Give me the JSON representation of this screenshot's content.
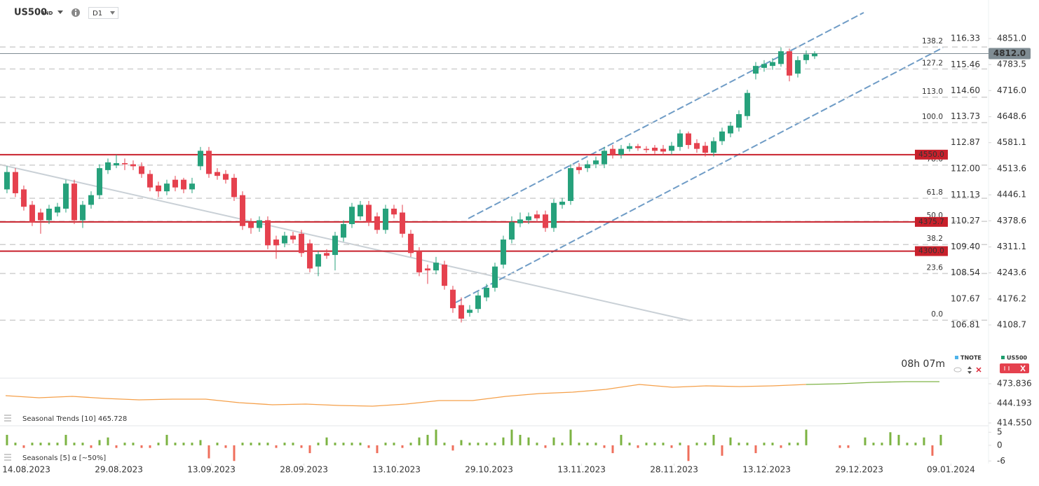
{
  "header": {
    "symbol": "US500",
    "market": "IND",
    "timeframe": "D1"
  },
  "chart_data": [
    {
      "type": "candlestick",
      "open": [
        4460,
        4505,
        4460,
        4420,
        4400,
        4380,
        4400,
        4410,
        4475,
        4380,
        4420,
        4445,
        4510,
        4522,
        4528,
        4525,
        4520,
        4500,
        4470,
        4455,
        4485,
        4485,
        4460,
        4520,
        4560,
        4505,
        4500,
        4490,
        4445,
        4375,
        4360,
        4380,
        4330,
        4320,
        4340,
        4345,
        4320,
        4260,
        4295,
        4290,
        4335,
        4370,
        4390,
        4420,
        4390,
        4355,
        4410,
        4400,
        4345,
        4300,
        4255,
        4250,
        4265,
        4200,
        4160,
        4140,
        4150,
        4180,
        4205,
        4265,
        4330,
        4372,
        4380,
        4395,
        4395,
        4360,
        4420,
        4430,
        4518,
        4515,
        4525,
        4525,
        4565,
        4550,
        4565,
        4572,
        4565,
        4568,
        4565,
        4560,
        4570,
        4605,
        4580,
        4573,
        4555,
        4585,
        4605,
        4620,
        4650,
        4760,
        4775,
        4780,
        4785,
        4818,
        4760,
        4795,
        4805
      ],
      "high": [
        4520,
        4515,
        4470,
        4430,
        4410,
        4420,
        4425,
        4485,
        4485,
        4430,
        4455,
        4525,
        4540,
        4550,
        4540,
        4535,
        4530,
        4510,
        4480,
        4485,
        4495,
        4490,
        4490,
        4570,
        4570,
        4515,
        4510,
        4500,
        4455,
        4385,
        4390,
        4390,
        4340,
        4350,
        4350,
        4355,
        4330,
        4300,
        4305,
        4350,
        4380,
        4425,
        4430,
        4430,
        4400,
        4420,
        4420,
        4420,
        4355,
        4310,
        4265,
        4285,
        4275,
        4210,
        4180,
        4160,
        4195,
        4215,
        4270,
        4340,
        4390,
        4400,
        4400,
        4405,
        4405,
        4435,
        4438,
        4525,
        4528,
        4535,
        4545,
        4570,
        4575,
        4575,
        4580,
        4578,
        4572,
        4575,
        4575,
        4583,
        4615,
        4610,
        4590,
        4583,
        4595,
        4620,
        4635,
        4665,
        4718,
        4790,
        4795,
        4800,
        4828,
        4825,
        4805,
        4820,
        4818
      ],
      "low": [
        4450,
        4440,
        4405,
        4365,
        4345,
        4370,
        4390,
        4400,
        4370,
        4360,
        4410,
        4435,
        4500,
        4515,
        4510,
        4510,
        4490,
        4455,
        4440,
        4445,
        4455,
        4450,
        4450,
        4510,
        4490,
        4485,
        4475,
        4430,
        4355,
        4345,
        4350,
        4305,
        4280,
        4310,
        4320,
        4285,
        4245,
        4235,
        4280,
        4250,
        4325,
        4360,
        4380,
        4365,
        4345,
        4345,
        4385,
        4335,
        4285,
        4235,
        4215,
        4240,
        4200,
        4140,
        4115,
        4130,
        4140,
        4170,
        4195,
        4255,
        4320,
        4362,
        4370,
        4375,
        4350,
        4350,
        4410,
        4420,
        4500,
        4505,
        4515,
        4515,
        4540,
        4540,
        4558,
        4560,
        4555,
        4552,
        4548,
        4550,
        4560,
        4565,
        4555,
        4545,
        4545,
        4575,
        4595,
        4610,
        4640,
        4745,
        4765,
        4770,
        4778,
        4740,
        4750,
        4785,
        4798
      ],
      "close": [
        4505,
        4450,
        4415,
        4375,
        4380,
        4410,
        4415,
        4475,
        4380,
        4420,
        4445,
        4515,
        4530,
        4528,
        4525,
        4520,
        4500,
        4465,
        4455,
        4475,
        4465,
        4460,
        4475,
        4560,
        4500,
        4495,
        4485,
        4440,
        4365,
        4360,
        4380,
        4315,
        4315,
        4340,
        4330,
        4295,
        4255,
        4292,
        4288,
        4340,
        4370,
        4415,
        4420,
        4375,
        4355,
        4410,
        4395,
        4345,
        4295,
        4245,
        4250,
        4270,
        4210,
        4152,
        4125,
        4148,
        4185,
        4205,
        4260,
        4330,
        4375,
        4382,
        4390,
        4385,
        4360,
        4425,
        4428,
        4515,
        4510,
        4525,
        4535,
        4560,
        4550,
        4565,
        4572,
        4567,
        4562,
        4560,
        4558,
        4573,
        4605,
        4575,
        4565,
        4555,
        4585,
        4610,
        4625,
        4655,
        4710,
        4780,
        4785,
        4790,
        4818,
        4755,
        4795,
        4810,
        4812
      ],
      "up_color": "#26a17b",
      "down_color": "#e5414e",
      "xlim": [
        -0.83,
        116.67
      ],
      "xticks": [
        {
          "value": 2.3,
          "label": "14.08.2023"
        },
        {
          "value": 13.3,
          "label": "29.08.2023"
        },
        {
          "value": 24.3,
          "label": "13.09.2023"
        },
        {
          "value": 35.3,
          "label": "28.09.2023"
        },
        {
          "value": 46.3,
          "label": "13.10.2023"
        },
        {
          "value": 57.3,
          "label": "29.10.2023"
        },
        {
          "value": 68.3,
          "label": "13.11.2023"
        },
        {
          "value": 79.3,
          "label": "28.11.2023"
        },
        {
          "value": 90.3,
          "label": "13.12.2023"
        },
        {
          "value": 101.3,
          "label": "29.12.2023"
        },
        {
          "value": 112.2,
          "label": "09.01.2024"
        }
      ],
      "ylim": [
        4043.3,
        4932.7
      ],
      "yticks": [
        {
          "value": 4851,
          "label": "4851.0"
        },
        {
          "value": 4783.5,
          "label": "4783.5"
        },
        {
          "value": 4716,
          "label": "4716.0"
        },
        {
          "value": 4648.6,
          "label": "4648.6"
        },
        {
          "value": 4581.1,
          "label": "4581.1"
        },
        {
          "value": 4513.6,
          "label": "4513.6"
        },
        {
          "value": 4446.1,
          "label": "4446.1"
        },
        {
          "value": 4378.6,
          "label": "4378.6"
        },
        {
          "value": 4311.1,
          "label": "4311.1"
        },
        {
          "value": 4243.6,
          "label": "4243.6"
        },
        {
          "value": 4176.2,
          "label": "4176.2"
        },
        {
          "value": 4108.7,
          "label": "4108.7"
        }
      ],
      "y2lim": [
        105.972,
        117.377
      ],
      "y2ticks": [
        116.33,
        115.46,
        {
          "value": 114.6,
          "label": "114.60"
        },
        113.73,
        112.87,
        {
          "value": 112,
          "label": "112.00"
        },
        111.13,
        110.27,
        {
          "value": 109.4,
          "label": "109.40"
        },
        108.54,
        107.67,
        106.81
      ],
      "levels": [
        {
          "value": 4550,
          "label": "4550.0"
        },
        {
          "value": 4375.7,
          "label": "4375.7"
        },
        {
          "value": 4300,
          "label": "4300.0"
        }
      ],
      "level_color": "#c8202b",
      "last_price": {
        "value": 4812,
        "label": "4812.0"
      },
      "fib_levels": [
        {
          "value": 0,
          "label": "0.0"
        },
        23.6,
        38.2,
        {
          "value": 50,
          "label": "50.0"
        },
        61.8,
        78.6,
        {
          "value": 100,
          "label": "100.0"
        },
        {
          "value": 113,
          "label": "113.0"
        },
        127.2,
        138.2
      ],
      "fib_prices": [
        4121,
        4242,
        4317,
        4377,
        4437,
        4523,
        4633,
        4699,
        4772,
        4829
      ],
      "countdown": "08h 07m",
      "legend": [
        {
          "name": "TNOTE",
          "color": "#4fb3ea"
        },
        {
          "name": "US500",
          "color": "#1e9e6e"
        }
      ]
    },
    {
      "type": "line",
      "title": "Seasonal Trends [10] 465.728",
      "series": [
        {
          "name": "Seasonal Trends",
          "color": "#f5a04a",
          "values": [
            455.8,
            452.7,
            454.8,
            451.6,
            449.5,
            450.5,
            450.5,
            445.3,
            442.1,
            443.1,
            441.0,
            440.0,
            443.1,
            448.4,
            448.4,
            454.8,
            459.0,
            461.1,
            465.4,
            472.8,
            468.5,
            470.7,
            469.6,
            470.7,
            472.8,
            null,
            null,
            null,
            null
          ]
        },
        {
          "name": "Seasonal Trends projection",
          "color": "#7fb347",
          "values": [
            null,
            null,
            null,
            null,
            null,
            null,
            null,
            null,
            null,
            null,
            null,
            null,
            null,
            null,
            null,
            null,
            null,
            null,
            null,
            null,
            null,
            null,
            null,
            null,
            472.8,
            473.8,
            476.0,
            477.0,
            477.0
          ]
        }
      ],
      "ylim": [
        408.2,
        482.3
      ],
      "yticks": [
        473.836,
        444.193,
        {
          "value": 414.55,
          "label": "414.550"
        }
      ]
    },
    {
      "type": "bar",
      "title": "Seasonals [5] α [~50%]",
      "values": [
        4,
        1,
        -1,
        1,
        1,
        1,
        1,
        4,
        1,
        1,
        -1,
        2,
        3,
        -1,
        1,
        1,
        -1,
        -1,
        1,
        4,
        1,
        1,
        1,
        2,
        -5,
        1,
        -1,
        -6,
        1,
        1,
        1,
        1,
        -1,
        1,
        1,
        -1,
        -3,
        1,
        3,
        1,
        1,
        1,
        1,
        -1,
        -3,
        1,
        1,
        -1,
        1,
        3,
        4,
        6,
        1,
        -2,
        2,
        1,
        1,
        1,
        1,
        3,
        6,
        4,
        3,
        1,
        -1,
        3,
        1,
        6,
        1,
        1,
        1,
        -1,
        -3,
        4,
        1,
        -1,
        1,
        1,
        1,
        -1,
        1,
        -6,
        1,
        1,
        4,
        -4,
        3,
        1,
        1,
        -3,
        1,
        1,
        -1,
        1,
        1,
        6,
        0,
        0,
        0,
        -1,
        -1,
        0,
        3,
        1,
        1,
        5,
        4,
        1,
        1,
        3,
        -4,
        4
      ],
      "up_color": "#7cb342",
      "down_color": "#ef6f5c",
      "ylim": [
        -7,
        6.4
      ],
      "yticks": [
        5,
        0,
        -6
      ]
    }
  ]
}
